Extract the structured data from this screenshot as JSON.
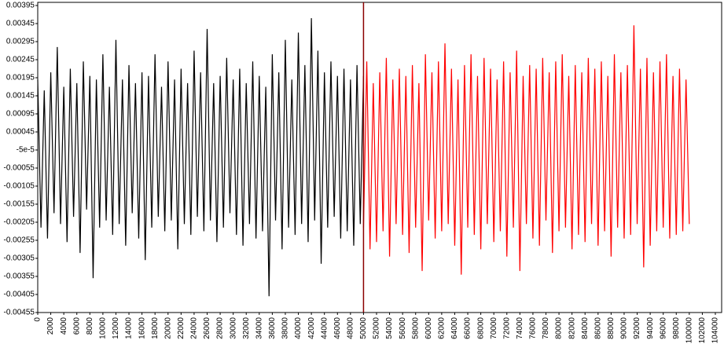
{
  "chart_data": {
    "type": "line",
    "x": [
      0,
      500,
      1000,
      1500,
      2000,
      2500,
      3000,
      3500,
      4000,
      4500,
      5000,
      5500,
      6000,
      6500,
      7000,
      7500,
      8000,
      8500,
      9000,
      9500,
      10000,
      10500,
      11000,
      11500,
      12000,
      12500,
      13000,
      13500,
      14000,
      14500,
      15000,
      15500,
      16000,
      16500,
      17000,
      17500,
      18000,
      18500,
      19000,
      19500,
      20000,
      20500,
      21000,
      21500,
      22000,
      22500,
      23000,
      23500,
      24000,
      24500,
      25000,
      25500,
      26000,
      26500,
      27000,
      27500,
      28000,
      28500,
      29000,
      29500,
      30000,
      30500,
      31000,
      31500,
      32000,
      32500,
      33000,
      33500,
      34000,
      34500,
      35000,
      35500,
      36000,
      36500,
      37000,
      37500,
      38000,
      38500,
      39000,
      39500,
      40000,
      40500,
      41000,
      41500,
      42000,
      42500,
      43000,
      43500,
      44000,
      44500,
      45000,
      45500,
      46000,
      46500,
      47000,
      47500,
      48000,
      48500,
      49000,
      49500,
      50000,
      50500,
      51000,
      51500,
      52000,
      52500,
      53000,
      53500,
      54000,
      54500,
      55000,
      55500,
      56000,
      56500,
      57000,
      57500,
      58000,
      58500,
      59000,
      59500,
      60000,
      60500,
      61000,
      61500,
      62000,
      62500,
      63000,
      63500,
      64000,
      64500,
      65000,
      65500,
      66000,
      66500,
      67000,
      67500,
      68000,
      68500,
      69000,
      69500,
      70000,
      70500,
      71000,
      71500,
      72000,
      72500,
      73000,
      73500,
      74000,
      74500,
      75000,
      75500,
      76000,
      76500,
      77000,
      77500,
      78000,
      78500,
      79000,
      79500,
      80000,
      80500,
      81000,
      81500,
      82000,
      82500,
      83000,
      83500,
      84000,
      84500,
      85000,
      85500,
      86000,
      86500,
      87000,
      87500,
      88000,
      88500,
      89000,
      89500,
      90000,
      90500,
      91000,
      91500,
      92000,
      92500,
      93000,
      93500,
      94000,
      94500,
      95000,
      95500,
      96000,
      96500,
      97000,
      97500,
      98000,
      98500,
      99000,
      99500,
      100000
    ],
    "series": [
      {
        "color": "#000000",
        "values": [
          0.0019,
          -0.0022,
          0.0016,
          -0.0025,
          0.0021,
          -0.0018,
          0.0028,
          -0.0021,
          0.0017,
          -0.0026,
          0.0022,
          -0.0019,
          0.0018,
          -0.0029,
          0.0024,
          -0.0017,
          0.002,
          -0.0036,
          0.0019,
          -0.0022,
          0.0026,
          -0.002,
          0.0017,
          -0.0024,
          0.003,
          -0.0021,
          0.0019,
          -0.0027,
          0.0023,
          -0.0018,
          0.0018,
          -0.0025,
          0.0021,
          -0.0031,
          0.002,
          -0.0022,
          0.0026,
          -0.0019,
          0.0017,
          -0.0023,
          0.0024,
          -0.002,
          0.0019,
          -0.0028,
          0.0022,
          -0.0021,
          0.0018,
          -0.0024,
          0.0027,
          -0.0019,
          0.0021,
          -0.0023,
          0.0033,
          -0.002,
          0.0018,
          -0.0026,
          0.002,
          -0.0022,
          0.0025,
          -0.0018,
          0.0019,
          -0.0024,
          0.0022,
          -0.0027,
          0.0018,
          -0.0021,
          0.0024,
          -0.0025,
          0.002,
          -0.0023,
          0.0017,
          -0.0041,
          0.0026,
          -0.002,
          0.0021,
          -0.0028,
          0.003,
          -0.0022,
          0.0019,
          -0.0024,
          0.0032,
          -0.0021,
          0.0023,
          -0.0026,
          0.0036,
          -0.002,
          0.0027,
          -0.0032,
          0.0021,
          -0.0022,
          0.0024,
          -0.0019,
          0.002,
          -0.0025,
          0.0022,
          -0.0023,
          0.0019,
          -0.0027,
          0.0023,
          -0.0021,
          0.002,
          null,
          null,
          null,
          null,
          null,
          null,
          null,
          null,
          null,
          null,
          null,
          null,
          null,
          null,
          null,
          null,
          null,
          null,
          null,
          null,
          null,
          null,
          null,
          null,
          null,
          null,
          null,
          null,
          null,
          null,
          null,
          null,
          null,
          null,
          null,
          null,
          null,
          null,
          null,
          null,
          null,
          null,
          null,
          null,
          null,
          null,
          null,
          null,
          null,
          null,
          null,
          null,
          null,
          null,
          null,
          null,
          null,
          null,
          null,
          null,
          null,
          null,
          null,
          null,
          null,
          null,
          null,
          null,
          null,
          null,
          null,
          null,
          null,
          null,
          null,
          null,
          null,
          null,
          null,
          null,
          null,
          null,
          null,
          null,
          null,
          null,
          null,
          null,
          null,
          null,
          null,
          null,
          null,
          null,
          null,
          null,
          null,
          null,
          null,
          null
        ]
      },
      {
        "color": "#ff0000",
        "values": [
          null,
          null,
          null,
          null,
          null,
          null,
          null,
          null,
          null,
          null,
          null,
          null,
          null,
          null,
          null,
          null,
          null,
          null,
          null,
          null,
          null,
          null,
          null,
          null,
          null,
          null,
          null,
          null,
          null,
          null,
          null,
          null,
          null,
          null,
          null,
          null,
          null,
          null,
          null,
          null,
          null,
          null,
          null,
          null,
          null,
          null,
          null,
          null,
          null,
          null,
          null,
          null,
          null,
          null,
          null,
          null,
          null,
          null,
          null,
          null,
          null,
          null,
          null,
          null,
          null,
          null,
          null,
          null,
          null,
          null,
          null,
          null,
          null,
          null,
          null,
          null,
          null,
          null,
          null,
          null,
          null,
          null,
          null,
          null,
          null,
          null,
          null,
          null,
          null,
          null,
          null,
          null,
          null,
          null,
          null,
          null,
          null,
          null,
          null,
          null,
          -0.0022,
          0.0024,
          -0.0028,
          0.0018,
          -0.0026,
          0.0021,
          -0.0023,
          0.0025,
          -0.003,
          0.0019,
          -0.0021,
          0.0022,
          -0.0024,
          0.002,
          -0.0029,
          0.0023,
          -0.0022,
          0.0018,
          -0.0034,
          0.0026,
          -0.002,
          0.0021,
          -0.0025,
          0.0024,
          -0.0023,
          0.0029,
          -0.0021,
          0.0022,
          -0.0027,
          0.0019,
          -0.0035,
          0.0023,
          -0.0022,
          0.0026,
          -0.0024,
          0.002,
          -0.0028,
          0.0025,
          -0.0021,
          0.0022,
          -0.0026,
          0.0019,
          -0.0023,
          0.0024,
          -0.003,
          0.0021,
          -0.0022,
          0.0027,
          -0.0034,
          0.002,
          -0.0021,
          0.0023,
          -0.0025,
          0.0022,
          -0.0027,
          0.0025,
          -0.002,
          0.0021,
          -0.0029,
          0.0024,
          -0.0023,
          0.0026,
          -0.0022,
          0.002,
          -0.0028,
          0.0023,
          -0.0024,
          0.0021,
          -0.0026,
          0.0025,
          -0.0021,
          0.0022,
          -0.0027,
          0.0024,
          -0.0023,
          0.002,
          -0.003,
          0.0026,
          -0.0022,
          0.0021,
          -0.0025,
          0.0023,
          -0.0024,
          0.0034,
          -0.0021,
          0.0022,
          -0.0033,
          0.0025,
          -0.0027,
          0.0021,
          -0.0023,
          0.0024,
          -0.0022,
          0.0026,
          -0.0025,
          0.002,
          -0.0024,
          0.0022,
          -0.0023,
          0.0019,
          -0.0021
        ]
      }
    ],
    "vline": {
      "x": 50000,
      "color": "#8b0000"
    },
    "xlim": [
      0,
      104000
    ],
    "xticks": [
      0,
      2000,
      4000,
      6000,
      8000,
      10000,
      12000,
      14000,
      16000,
      18000,
      20000,
      22000,
      24000,
      26000,
      28000,
      30000,
      32000,
      34000,
      36000,
      38000,
      40000,
      42000,
      44000,
      46000,
      48000,
      50000,
      52000,
      54000,
      56000,
      58000,
      60000,
      62000,
      64000,
      66000,
      68000,
      70000,
      72000,
      74000,
      76000,
      78000,
      80000,
      82000,
      84000,
      86000,
      88000,
      90000,
      92000,
      94000,
      96000,
      98000,
      100000,
      102000,
      104000
    ],
    "ylim": [
      -0.00455,
      0.00395
    ],
    "yticks": [
      -0.00455,
      -0.00405,
      -0.00355,
      -0.00305,
      -0.00255,
      -0.00205,
      -0.00155,
      -0.00105,
      -0.00055,
      {
        "value": -5e-05,
        "label": "-5e-5"
      },
      0.00045,
      0.00095,
      0.00145,
      0.00195,
      0.00245,
      0.00295,
      0.00345,
      0.00395
    ],
    "grid": false
  }
}
